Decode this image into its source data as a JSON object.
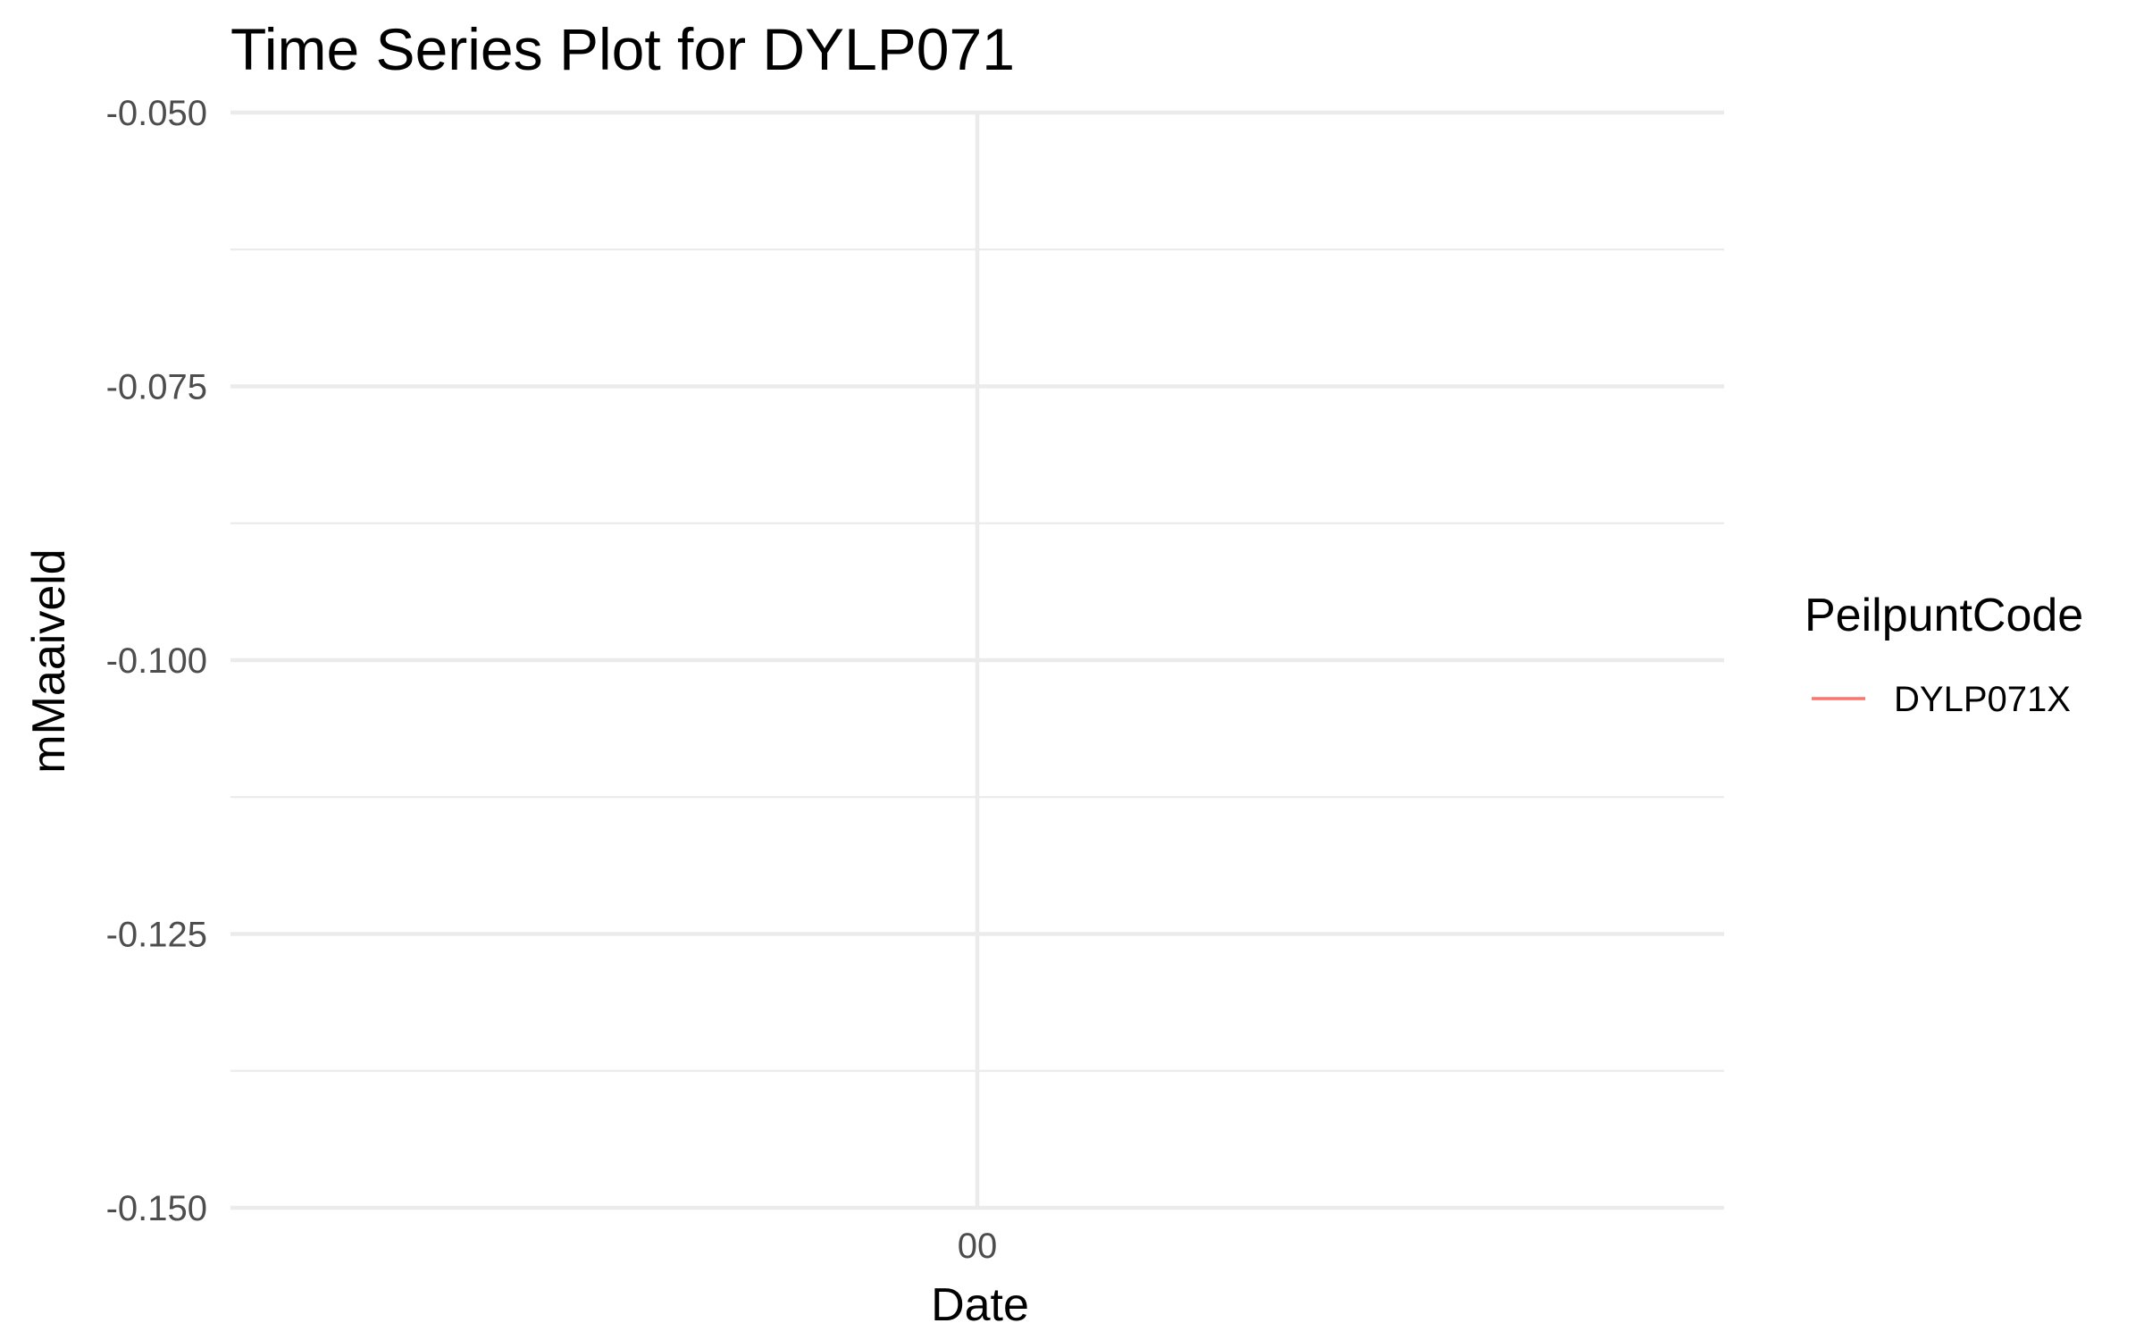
{
  "chart_data": {
    "type": "line",
    "title": "Time Series Plot for DYLP071",
    "xlabel": "Date",
    "ylabel": "mMaaiveld",
    "ylim": [
      -0.15,
      -0.05
    ],
    "yticks": [
      -0.15,
      -0.125,
      -0.1,
      -0.075,
      -0.05
    ],
    "ytick_labels": [
      "-0.150",
      "-0.125",
      "-0.100",
      "-0.075",
      "-0.050"
    ],
    "xtick_labels": [
      "00"
    ],
    "grid": true,
    "legend": {
      "title": "PeilpuntCode",
      "placement": "right",
      "entries": [
        {
          "name": "DYLP071X",
          "color": "#F8766D"
        }
      ]
    },
    "series": [
      {
        "name": "DYLP071X",
        "color": "#F8766D",
        "x": [],
        "y": []
      }
    ]
  }
}
